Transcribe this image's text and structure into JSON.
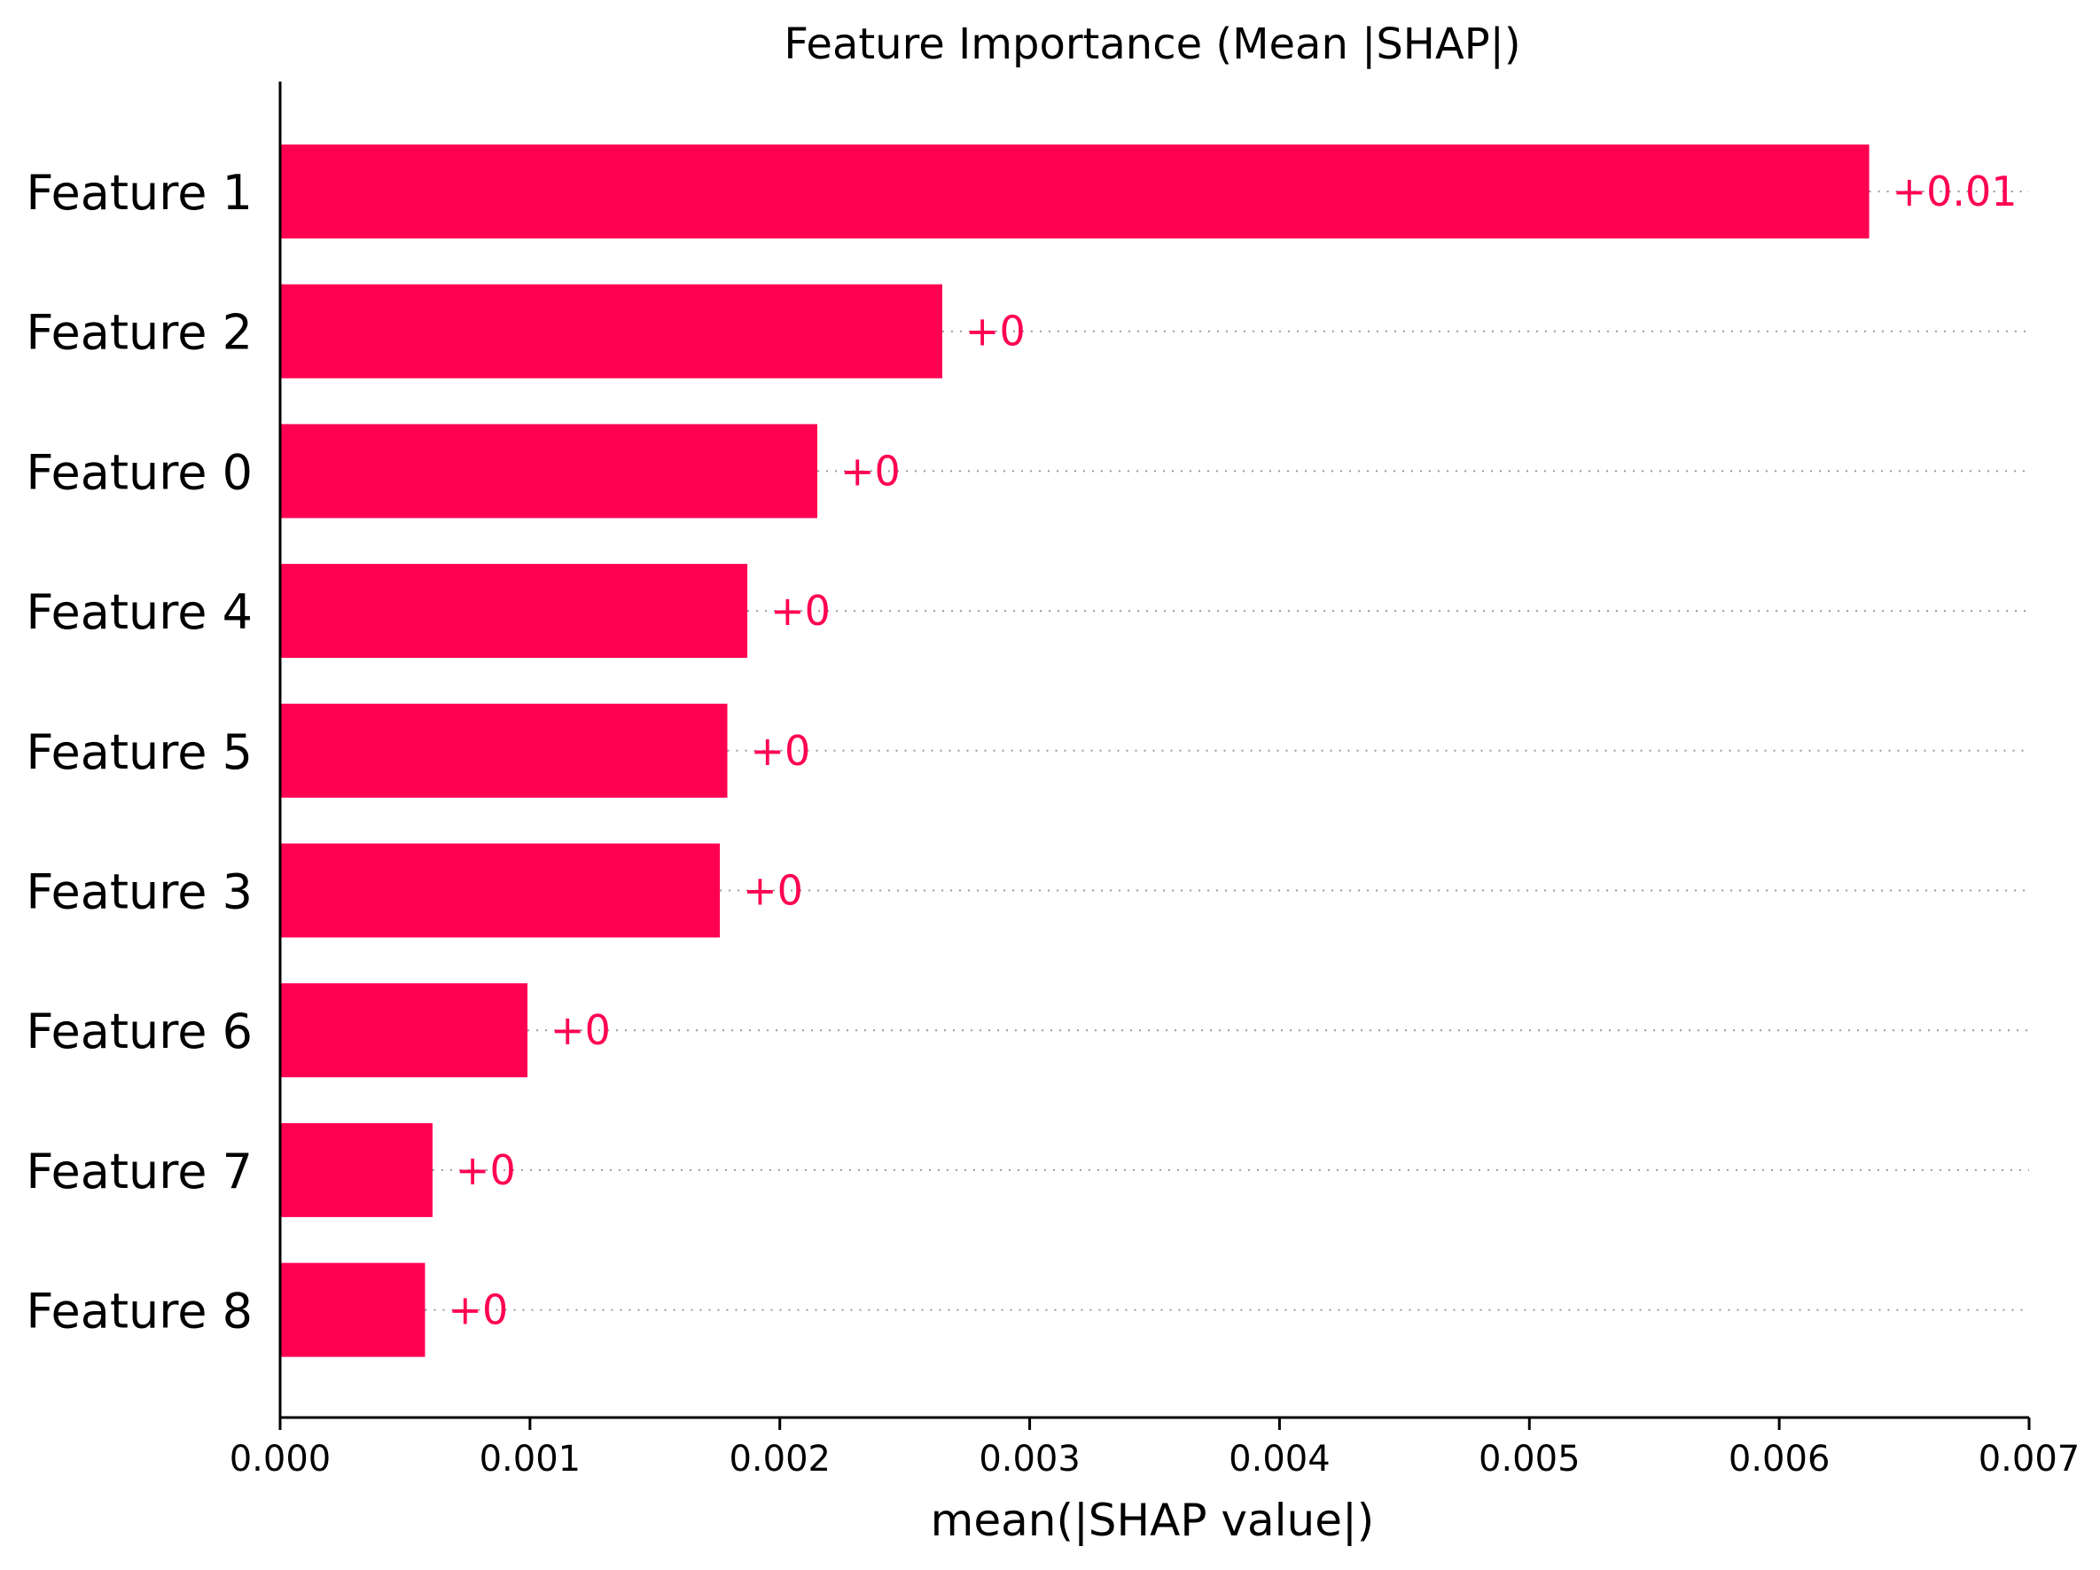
{
  "chart_data": {
    "type": "bar",
    "orientation": "horizontal",
    "title": "Feature Importance (Mean |SHAP|)",
    "xlabel": "mean(|SHAP value|)",
    "ylabel": "",
    "xlim": [
      0,
      0.007
    ],
    "xticks": [
      0,
      0.001,
      0.002,
      0.003,
      0.004,
      0.005,
      0.006,
      0.007
    ],
    "xtick_labels": [
      "0.000",
      "0.001",
      "0.002",
      "0.003",
      "0.004",
      "0.005",
      "0.006",
      "0.007"
    ],
    "categories": [
      "Feature 1",
      "Feature 2",
      "Feature 0",
      "Feature 4",
      "Feature 5",
      "Feature 3",
      "Feature 6",
      "Feature 7",
      "Feature 8"
    ],
    "values": [
      0.00636,
      0.00265,
      0.00215,
      0.00187,
      0.00179,
      0.00176,
      0.00099,
      0.00061,
      0.00058
    ],
    "value_labels": [
      "+0.01",
      "+0",
      "+0",
      "+0",
      "+0",
      "+0",
      "+0",
      "+0",
      "+0"
    ],
    "grid": false,
    "bar_color": "#ff0051",
    "label_color": "#ff0051"
  }
}
